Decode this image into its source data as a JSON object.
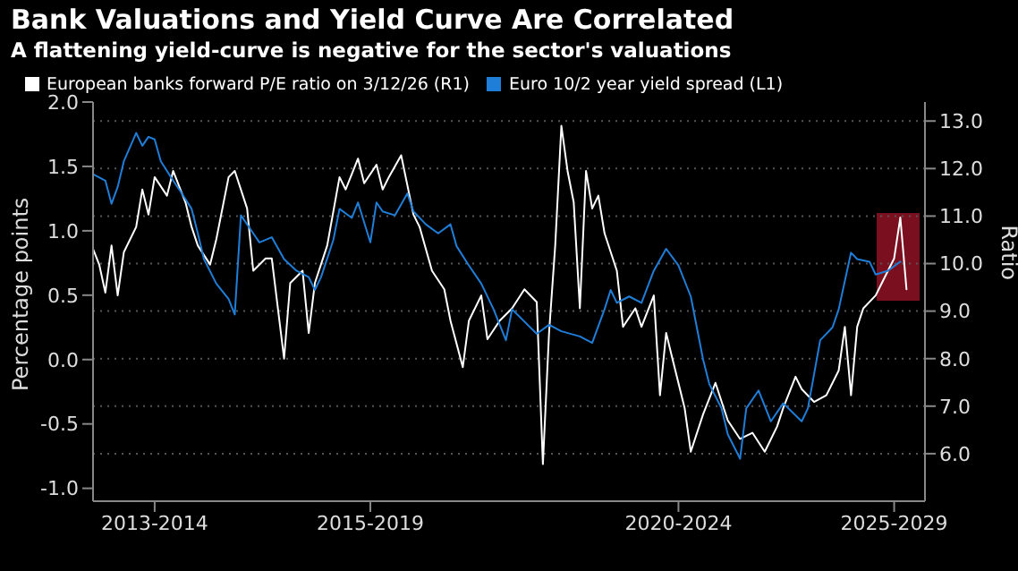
{
  "chart_data": {
    "type": "line",
    "title": "Bank Valuations and Yield Curve Are Correlated",
    "subtitle": "A flattening yield-curve is negative for the sector's valuations",
    "ylabel": "Percentage points",
    "y2label": "Ratio",
    "legend": "top left",
    "grid": true,
    "marker": "none",
    "line_style": "solid",
    "categories": [
      null,
      null,
      null,
      null,
      null,
      null,
      null,
      null,
      null,
      null,
      "2013-2014",
      null,
      null,
      null,
      null,
      null,
      null,
      null,
      null,
      null,
      null,
      null,
      null,
      null,
      null,
      null,
      null,
      null,
      null,
      null,
      null,
      null,
      null,
      null,
      null,
      null,
      null,
      null,
      null,
      null,
      null,
      null,
      null,
      null,
      null,
      "2015-2019",
      null,
      null,
      null,
      null,
      null,
      null,
      null,
      null,
      null,
      null,
      null,
      null,
      null,
      null,
      null,
      null,
      null,
      null,
      null,
      null,
      null,
      null,
      null,
      null,
      null,
      null,
      null,
      null,
      null,
      null,
      null,
      null,
      null,
      null,
      null,
      null,
      null,
      null,
      null,
      null,
      null,
      null,
      null,
      null,
      null,
      null,
      null,
      null,
      null,
      "2020-2024",
      null,
      null,
      null,
      null,
      null,
      null,
      null,
      null,
      null,
      null,
      null,
      null,
      null,
      null,
      null,
      null,
      null,
      null,
      null,
      null,
      null,
      null,
      null,
      null,
      null,
      null,
      null,
      null,
      null,
      null,
      null,
      null,
      null,
      null,
      "2025-2029",
      null,
      null,
      null,
      null,
      null
    ],
    "ylim": [
      -1.1,
      2.0
    ],
    "yticks": [
      {
        "value": -1,
        "label": "-1.0"
      },
      {
        "value": -0.5,
        "label": "-0.5"
      },
      {
        "value": 0,
        "label": "0.0"
      },
      {
        "value": 0.5,
        "label": "0.5"
      },
      {
        "value": 1,
        "label": "1.0"
      },
      {
        "value": 1.5,
        "label": "1.5"
      },
      {
        "value": 2,
        "label": "2.0"
      }
    ],
    "y2lim": [
      5.0,
      13.4
    ],
    "y2ticks": [
      {
        "value": 6,
        "label": "6.0"
      },
      {
        "value": 7,
        "label": "7.0"
      },
      {
        "value": 8,
        "label": "8.0"
      },
      {
        "value": 9,
        "label": "9.0"
      },
      {
        "value": 10,
        "label": "10.0"
      },
      {
        "value": 11,
        "label": "11.0"
      },
      {
        "value": 12,
        "label": "12.0"
      },
      {
        "value": 13,
        "label": "13.0"
      }
    ],
    "series": [
      {
        "name": "European banks forward P/E ratio on 3/12/26 (R1)",
        "color": "#ffffff",
        "axis": "y2",
        "values": [
          10.31,
          9.98,
          9.39,
          10.38,
          9.33,
          10.24,
          null,
          10.77,
          11.56,
          11.03,
          11.82,
          null,
          11.43,
          11.95,
          null,
          11.29,
          10.77,
          10.38,
          null,
          9.98,
          10.51,
          null,
          11.82,
          11.95,
          null,
          11.16,
          9.85,
          null,
          10.11,
          10.11,
          null,
          8.0,
          9.59,
          null,
          9.85,
          8.54,
          9.59,
          null,
          10.38,
          null,
          11.82,
          11.56,
          null,
          12.21,
          11.69,
          null,
          12.08,
          11.56,
          11.82,
          null,
          12.28,
          null,
          11.03,
          10.77,
          null,
          9.85,
          null,
          9.46,
          8.8,
          null,
          7.82,
          8.8,
          null,
          9.33,
          8.41,
          null,
          8.8,
          null,
          9.06,
          null,
          9.46,
          null,
          9.19,
          5.78,
          8.54,
          10.38,
          12.9,
          11.95,
          11.29,
          9.06,
          11.95,
          11.16,
          11.43,
          10.64,
          null,
          9.85,
          8.67,
          null,
          9.06,
          8.67,
          null,
          9.33,
          7.23,
          8.54,
          8.01,
          null,
          6.96,
          6.04,
          null,
          6.83,
          null,
          7.49,
          null,
          6.7,
          null,
          6.31,
          null,
          6.44,
          null,
          6.04,
          null,
          6.57,
          6.96,
          null,
          7.62,
          7.36,
          null,
          7.09,
          null,
          7.23,
          null,
          7.75,
          8.67,
          7.23,
          8.67,
          9.06,
          null,
          9.33,
          9.59,
          null,
          10.11,
          10.97,
          9.46,
          null,
          null,
          null
        ]
      },
      {
        "name": "Euro 10/2 year yield spread (L1)",
        "color": "#1f7ed8",
        "values": [
          1.44,
          null,
          1.39,
          1.21,
          1.34,
          1.54,
          null,
          1.76,
          1.66,
          1.73,
          1.71,
          1.54,
          null,
          1.39,
          1.32,
          null,
          1.17,
          0.98,
          0.78,
          null,
          0.59,
          null,
          0.47,
          0.35,
          1.12,
          null,
          0.98,
          0.91,
          null,
          0.95,
          null,
          0.78,
          null,
          0.69,
          null,
          0.64,
          0.54,
          0.64,
          null,
          0.93,
          1.17,
          null,
          1.1,
          1.22,
          null,
          0.91,
          1.22,
          1.15,
          null,
          1.12,
          null,
          1.29,
          1.15,
          null,
          1.05,
          null,
          0.98,
          null,
          1.05,
          0.88,
          null,
          0.73,
          null,
          0.59,
          null,
          0.39,
          null,
          0.15,
          0.39,
          null,
          null,
          null,
          0.2,
          null,
          0.27,
          null,
          0.22,
          null,
          null,
          0.18,
          null,
          0.13,
          null,
          0.39,
          0.54,
          0.44,
          null,
          0.49,
          null,
          0.44,
          null,
          0.69,
          null,
          0.86,
          null,
          0.73,
          null,
          0.49,
          null,
          0.0,
          -0.19,
          null,
          -0.38,
          -0.58,
          null,
          -0.77,
          -0.38,
          null,
          -0.24,
          null,
          -0.48,
          null,
          -0.34,
          null,
          null,
          -0.48,
          -0.38,
          null,
          0.15,
          null,
          0.25,
          0.39,
          null,
          0.83,
          0.78,
          null,
          0.76,
          0.66,
          null,
          0.69,
          null,
          0.76,
          null,
          null,
          null,
          null
        ]
      }
    ]
  }
}
